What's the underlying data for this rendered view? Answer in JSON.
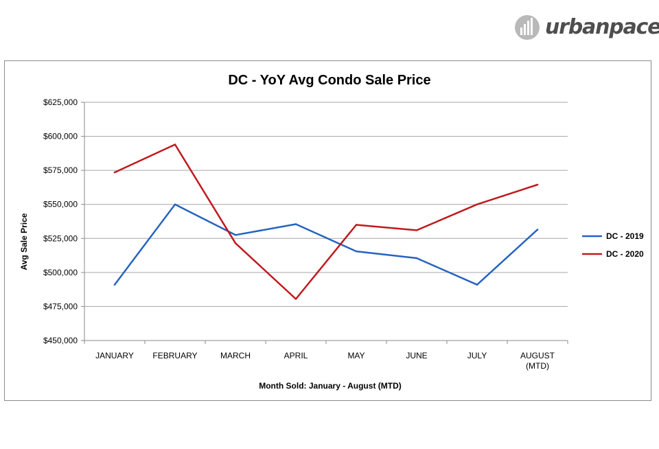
{
  "brand": {
    "logo_text": "urbanpace",
    "logo_color": "#4e4e4e"
  },
  "chart_data": {
    "type": "line",
    "title": "DC - YoY Avg Condo Sale Price",
    "xlabel": "Month Sold: January - August (MTD)",
    "ylabel": "Avg Sale Price",
    "categories": [
      "JANUARY",
      "FEBRUARY",
      "MARCH",
      "APRIL",
      "MAY",
      "JUNE",
      "JULY",
      "AUGUST (MTD)"
    ],
    "category_lines": [
      [
        "JANUARY"
      ],
      [
        "FEBRUARY"
      ],
      [
        "MARCH"
      ],
      [
        "APRIL"
      ],
      [
        "MAY"
      ],
      [
        "JUNE"
      ],
      [
        "JULY"
      ],
      [
        "AUGUST",
        "(MTD)"
      ]
    ],
    "ylim": [
      450000,
      625000
    ],
    "yticks": [
      450000,
      475000,
      500000,
      525000,
      550000,
      575000,
      600000,
      625000
    ],
    "ytick_labels": [
      "$450,000",
      "$475,000",
      "$500,000",
      "$525,000",
      "$550,000",
      "$575,000",
      "$600,000",
      "$625,000"
    ],
    "grid": true,
    "legend_position": "right",
    "series": [
      {
        "name": "DC - 2019",
        "color": "#2563c0",
        "values": [
          491000,
          550000,
          527500,
          535500,
          515500,
          510500,
          491000,
          531500
        ]
      },
      {
        "name": "DC - 2020",
        "color": "#c0191e",
        "values": [
          573500,
          594000,
          521500,
          480500,
          535000,
          531000,
          550000,
          564500
        ]
      }
    ]
  }
}
